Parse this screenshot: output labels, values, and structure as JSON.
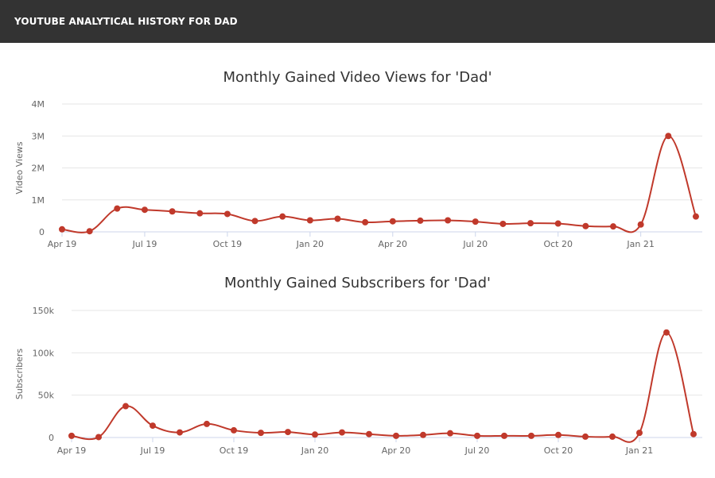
{
  "header": {
    "title": "YOUTUBE ANALYTICAL HISTORY FOR DAD"
  },
  "colors": {
    "header_bg": "#333333",
    "series": "#c0392b"
  },
  "chart_data": [
    {
      "type": "line",
      "title": "Monthly Gained Video Views for 'Dad'",
      "ylabel": "Video Views",
      "xlabel": "",
      "ylim": [
        0,
        4000000
      ],
      "yticks": [
        0,
        1000000,
        2000000,
        3000000,
        4000000
      ],
      "ytick_labels": [
        "0",
        "1M",
        "2M",
        "3M",
        "4M"
      ],
      "xticks": [
        "Apr 19",
        "Jul 19",
        "Oct 19",
        "Jan 20",
        "Apr 20",
        "Jul 20",
        "Oct 20",
        "Jan 21"
      ],
      "x": [
        "2019-04",
        "2019-05",
        "2019-06",
        "2019-07",
        "2019-08",
        "2019-09",
        "2019-10",
        "2019-11",
        "2019-12",
        "2020-01",
        "2020-02",
        "2020-03",
        "2020-04",
        "2020-05",
        "2020-06",
        "2020-07",
        "2020-08",
        "2020-09",
        "2020-10",
        "2020-11",
        "2020-12",
        "2021-01",
        "2021-02",
        "2021-03"
      ],
      "series": [
        {
          "values": [
            80000,
            20000,
            730000,
            690000,
            640000,
            580000,
            560000,
            340000,
            480000,
            360000,
            410000,
            300000,
            330000,
            350000,
            360000,
            320000,
            250000,
            270000,
            260000,
            180000,
            170000,
            230000,
            3000000,
            480000
          ]
        }
      ],
      "grid": true,
      "legend": "none"
    },
    {
      "type": "line",
      "title": "Monthly Gained Subscribers for 'Dad'",
      "ylabel": "Subscribers",
      "xlabel": "",
      "ylim": [
        0,
        150000
      ],
      "yticks": [
        0,
        50000,
        100000,
        150000
      ],
      "ytick_labels": [
        "0",
        "50k",
        "100k",
        "150k"
      ],
      "xticks": [
        "Apr 19",
        "Jul 19",
        "Oct 19",
        "Jan 20",
        "Apr 20",
        "Jul 20",
        "Oct 20",
        "Jan 21"
      ],
      "x": [
        "2019-04",
        "2019-05",
        "2019-06",
        "2019-07",
        "2019-08",
        "2019-09",
        "2019-10",
        "2019-11",
        "2019-12",
        "2020-01",
        "2020-02",
        "2020-03",
        "2020-04",
        "2020-05",
        "2020-06",
        "2020-07",
        "2020-08",
        "2020-09",
        "2020-10",
        "2020-11",
        "2020-12",
        "2021-01",
        "2021-02",
        "2021-03"
      ],
      "series": [
        {
          "values": [
            2000,
            500,
            37000,
            14000,
            6000,
            16000,
            8500,
            5500,
            6500,
            3500,
            6000,
            4000,
            2000,
            3000,
            5000,
            2000,
            2000,
            2000,
            3000,
            1000,
            1000,
            5500,
            124000,
            4000
          ]
        }
      ],
      "grid": true,
      "legend": "none"
    }
  ]
}
